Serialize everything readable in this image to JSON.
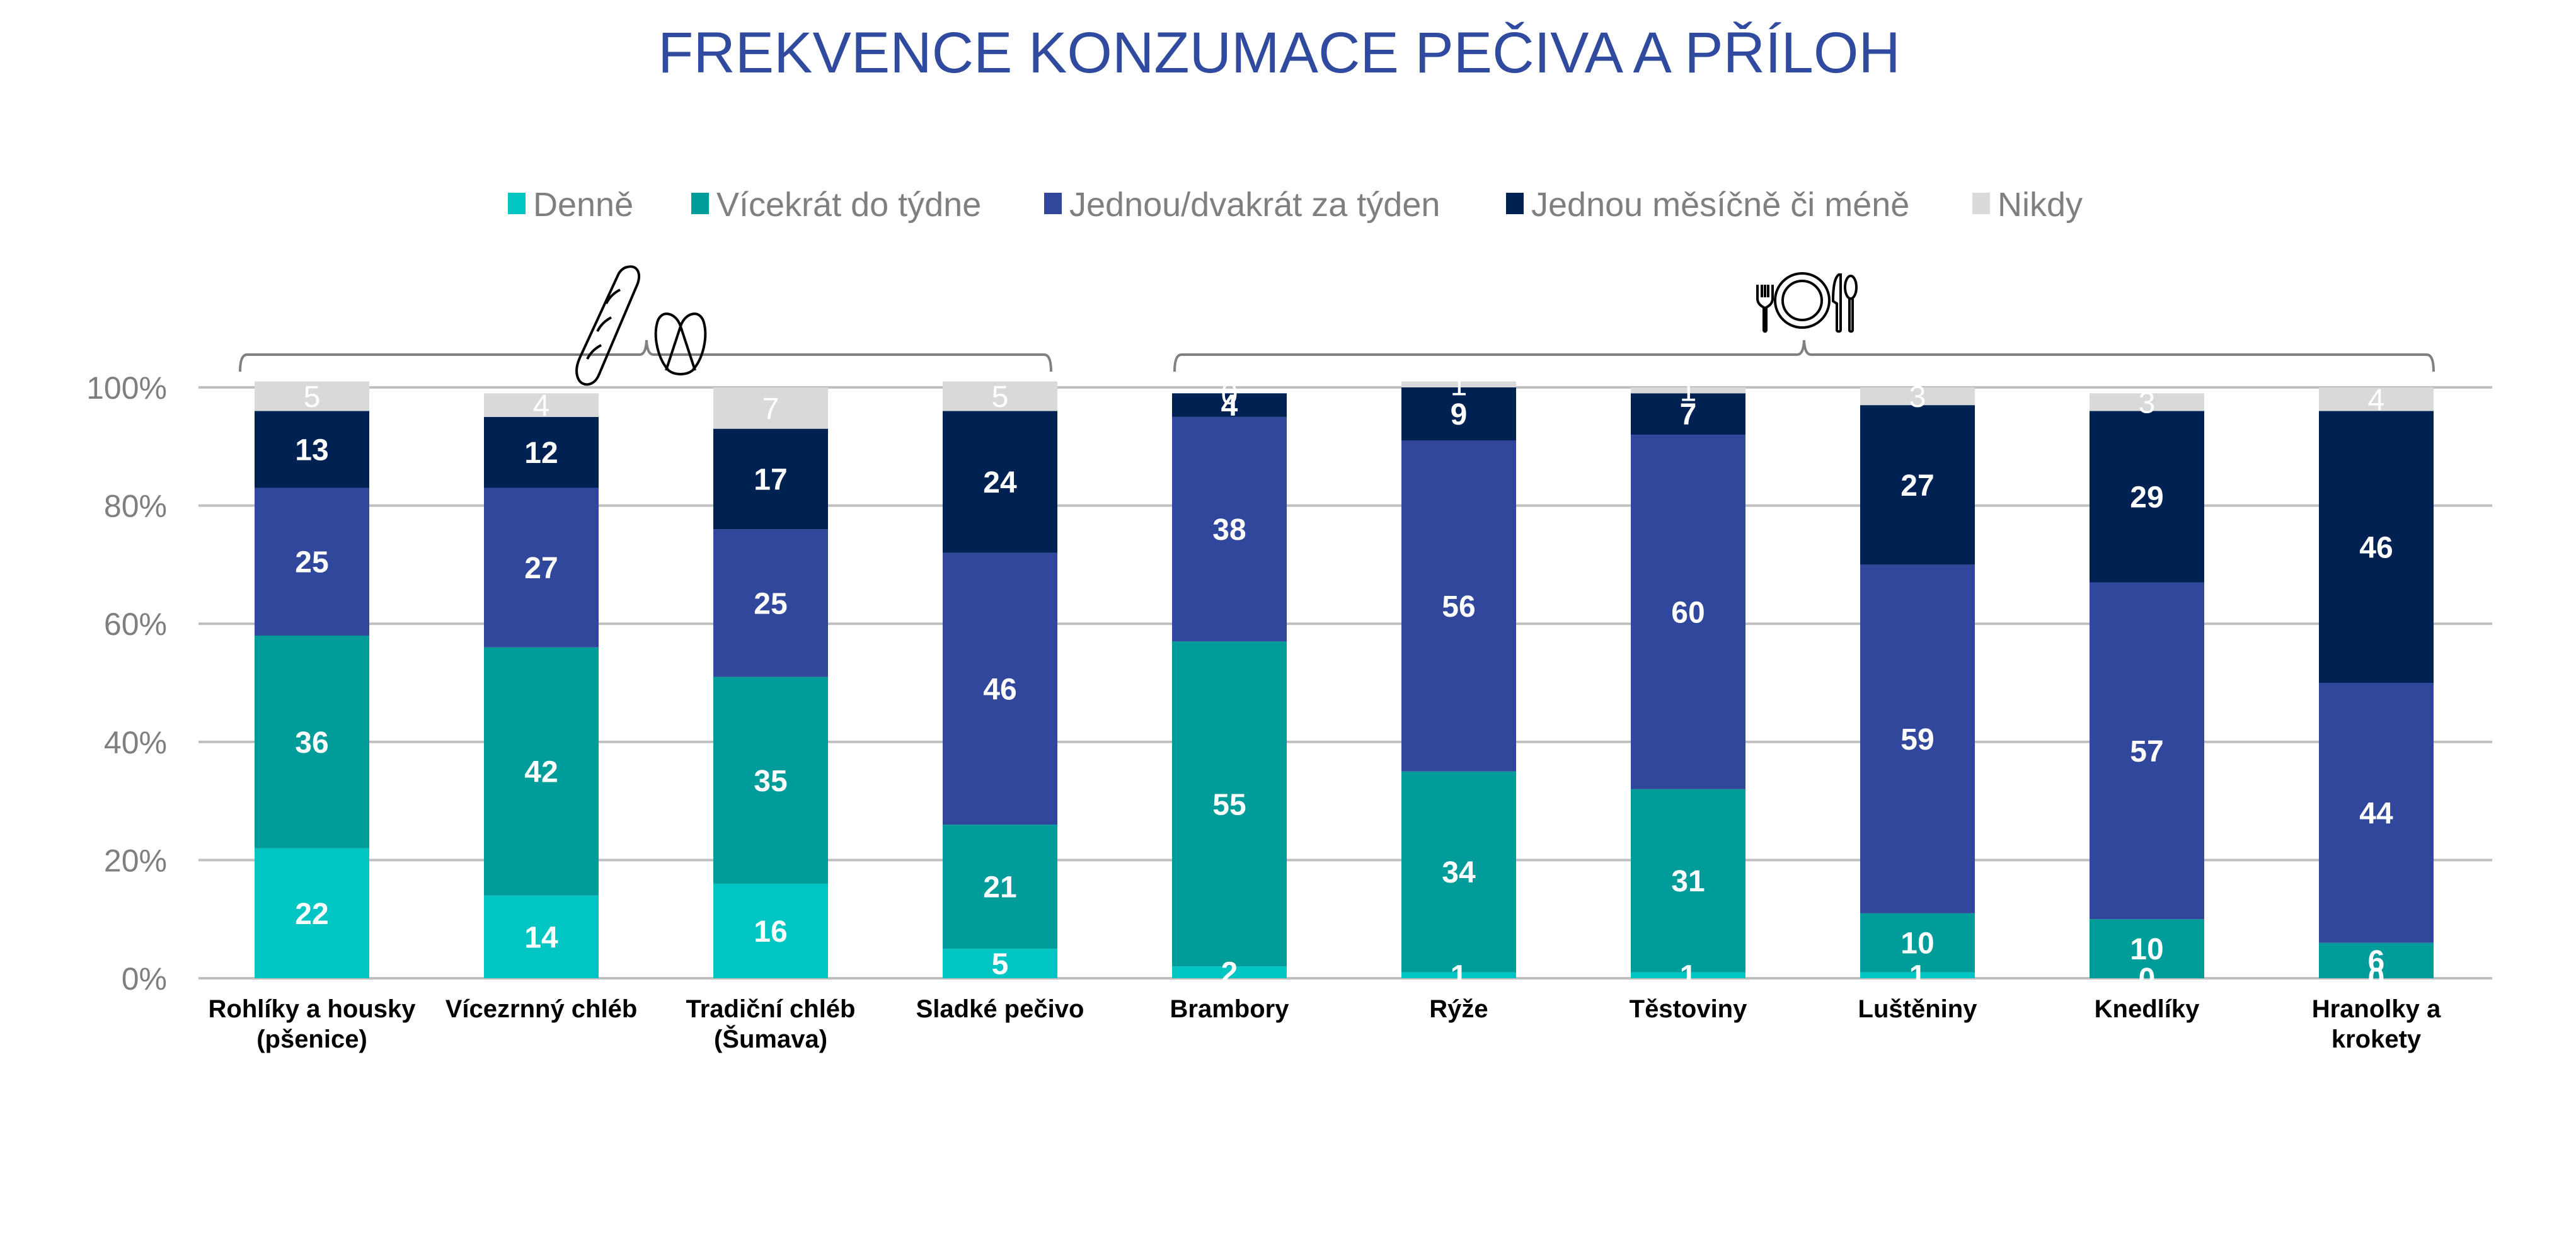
{
  "chart_data": {
    "type": "bar",
    "stacked": true,
    "percent_stacked": true,
    "title": "FREKVENCE KONZUMACE PEČIVA A PŘÍLOH",
    "xlabel": "",
    "ylabel": "",
    "ylim": [
      0,
      100
    ],
    "yticks": [
      "0%",
      "20%",
      "40%",
      "60%",
      "80%",
      "100%"
    ],
    "grid": true,
    "legend_position": "top",
    "categories": [
      [
        "Rohlíky a housky",
        "(pšenice)"
      ],
      [
        "Vícezrnný chléb"
      ],
      [
        "Tradiční chléb",
        "(Šumava)"
      ],
      [
        "Sladké pečivo"
      ],
      [
        "Brambory"
      ],
      [
        "Rýže"
      ],
      [
        "Těstoviny"
      ],
      [
        "Luštěniny"
      ],
      [
        "Knedlíky"
      ],
      [
        "Hranolky a",
        "krokety"
      ]
    ],
    "series": [
      {
        "name": "Denně",
        "color": "#00C5C2",
        "values": [
          22,
          14,
          16,
          5,
          2,
          1,
          1,
          1,
          0,
          0
        ]
      },
      {
        "name": "Vícekrát do týdne",
        "color": "#009C9A",
        "values": [
          36,
          42,
          35,
          21,
          55,
          34,
          31,
          10,
          10,
          6
        ]
      },
      {
        "name": "Jednou/dvakrát za týden",
        "color": "#30479C",
        "values": [
          25,
          27,
          25,
          46,
          38,
          56,
          60,
          59,
          57,
          44
        ]
      },
      {
        "name": "Jednou měsíčně či méně",
        "color": "#002253",
        "values": [
          13,
          12,
          17,
          24,
          4,
          9,
          7,
          27,
          29,
          46
        ]
      },
      {
        "name": "Nikdy",
        "color": "#D9D9D9",
        "values": [
          5,
          4,
          7,
          5,
          0,
          1,
          1,
          3,
          3,
          4
        ]
      }
    ],
    "groups": [
      {
        "name": "pečivo",
        "icon": "bread-pretzel-icon",
        "categories": [
          0,
          1,
          2,
          3
        ]
      },
      {
        "name": "přílohy",
        "icon": "plate-cutlery-icon",
        "categories": [
          4,
          5,
          6,
          7,
          8,
          9
        ]
      }
    ]
  },
  "colors": {
    "title": "#2F4A9E",
    "axis_text": "#7F7F7F",
    "gridline": "#BFBFBF",
    "bracket": "#808080"
  }
}
